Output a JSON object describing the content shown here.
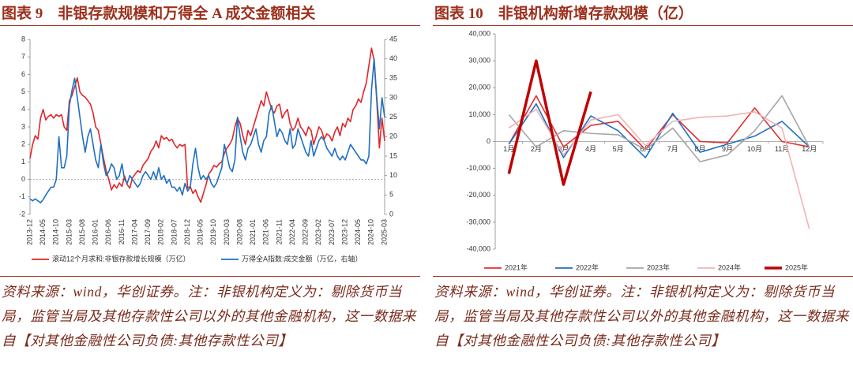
{
  "chart_data": [
    {
      "type": "line",
      "title": "图表 9　非银存款规模和万得全 A 成交金额相关",
      "categories": [
        "2013-12",
        null,
        null,
        null,
        null,
        "2014-05",
        null,
        null,
        null,
        null,
        "2014-10",
        null,
        null,
        null,
        null,
        "2015-03",
        null,
        null,
        null,
        null,
        "2015-08",
        null,
        null,
        null,
        null,
        "2016-01",
        null,
        null,
        null,
        null,
        "2016-06",
        null,
        null,
        null,
        null,
        "2016-11",
        null,
        null,
        null,
        null,
        "2017-04",
        null,
        null,
        null,
        null,
        "2017-09",
        null,
        null,
        null,
        null,
        "2018-02",
        null,
        null,
        null,
        null,
        "2018-07",
        null,
        null,
        null,
        null,
        "2018-12",
        null,
        null,
        null,
        null,
        "2019-05",
        null,
        null,
        null,
        null,
        "2019-10",
        null,
        null,
        null,
        null,
        "2020-03",
        null,
        null,
        null,
        null,
        "2020-08",
        null,
        null,
        null,
        null,
        "2021-01",
        null,
        null,
        null,
        null,
        "2021-06",
        null,
        null,
        null,
        null,
        "2021-11",
        null,
        null,
        null,
        null,
        "2022-04",
        null,
        null,
        null,
        null,
        "2022-09",
        null,
        null,
        null,
        null,
        "2023-02",
        null,
        null,
        null,
        null,
        "2023-07",
        null,
        null,
        null,
        null,
        "2023-12",
        null,
        null,
        null,
        null,
        "2024-05",
        null,
        null,
        null,
        null,
        "2024-10",
        null,
        null,
        null,
        null,
        "2025-03"
      ],
      "series": [
        {
          "name": "滚动12个月求和:非银存款增长规模（万亿）",
          "color": "#e0262a",
          "values": [
            1.2,
            2.0,
            2.5,
            2.3,
            3.5,
            4.0,
            3.4,
            3.6,
            3.7,
            3.5,
            3.7,
            3.6,
            3.7,
            3.0,
            2.8,
            4.5,
            4.8,
            5.3,
            5.8,
            5.0,
            4.8,
            4.7,
            4.5,
            4.3,
            3.8,
            3.0,
            2.8,
            2.0,
            1.2,
            0.5,
            0.0,
            -0.6,
            -0.3,
            -0.5,
            -0.2,
            -0.4,
            0.2,
            -0.3,
            -0.5,
            0.1,
            0.3,
            0.5,
            0.4,
            0.8,
            1.0,
            1.2,
            1.6,
            1.8,
            2.2,
            1.8,
            2.5,
            2.3,
            2.4,
            2.2,
            2.3,
            2.0,
            1.8,
            2.0,
            1.9,
            2.0,
            -0.5,
            -0.4,
            -0.8,
            -0.6,
            -1.0,
            -1.3,
            -0.8,
            -0.3,
            0.3,
            0.5,
            0.8,
            0.7,
            0.9,
            1.0,
            1.5,
            1.8,
            2.0,
            2.3,
            3.0,
            3.5,
            3.2,
            2.5,
            2.0,
            2.8,
            2.5,
            3.0,
            3.5,
            4.0,
            4.5,
            4.2,
            5.0,
            4.5,
            4.0,
            3.8,
            4.2,
            4.3,
            3.5,
            3.8,
            4.0,
            3.2,
            2.8,
            3.0,
            3.5,
            3.0,
            2.8,
            2.5,
            3.0,
            2.8,
            2.0,
            2.5,
            3.0,
            2.8,
            2.3,
            2.6,
            2.5,
            2.2,
            2.7,
            3.0,
            2.5,
            3.2,
            3.0,
            3.5,
            3.3,
            4.0,
            4.2,
            4.6,
            4.4,
            5.0,
            5.5,
            6.5,
            7.5,
            6.8,
            4.5,
            1.8,
            3.5,
            2.2
          ]
        },
        {
          "name": "万得全A指数:成交金额（万亿，右轴）",
          "color": "#1f6fc1",
          "axis": "y2",
          "values": [
            4,
            3.5,
            4,
            3.5,
            3,
            3.8,
            5,
            6,
            7,
            7,
            9,
            20,
            12,
            12,
            15,
            28,
            32,
            35,
            30,
            25,
            20,
            16,
            20,
            22,
            18,
            14,
            12,
            18,
            13,
            10,
            11,
            13,
            12,
            9,
            10,
            13,
            9,
            8,
            10,
            9,
            8,
            7,
            8,
            10,
            11,
            10,
            9,
            11,
            9,
            12,
            9,
            10,
            8,
            9,
            7,
            7,
            6,
            7,
            5,
            8,
            6,
            7,
            13,
            17,
            12,
            9,
            10,
            9,
            10,
            8,
            7,
            8,
            10,
            12,
            18,
            15,
            12,
            11,
            14,
            25,
            20,
            16,
            14,
            17,
            18,
            20,
            22,
            18,
            16,
            19,
            20,
            26,
            28,
            24,
            20,
            22,
            21,
            19,
            18,
            22,
            17,
            18,
            22,
            20,
            18,
            16,
            15,
            19,
            15,
            17,
            19,
            20,
            19,
            17,
            16,
            15,
            17,
            15,
            14,
            15,
            14,
            16,
            18,
            17,
            16,
            15,
            14,
            14,
            13,
            15,
            32,
            40,
            30,
            22,
            30,
            25
          ]
        }
      ],
      "ylim": [
        -2,
        8
      ],
      "yticks": [
        -2,
        -1,
        0,
        1,
        2,
        3,
        4,
        5,
        6,
        7,
        8
      ],
      "y2lim": [
        0,
        45
      ],
      "y2ticks": [
        0,
        5,
        10,
        15,
        20,
        25,
        30,
        35,
        40,
        45
      ],
      "source": "资料来源：wind，华创证券。注：非银机构定义为：剔除货币当局，监管当局及其他存款性公司以外的其他金融机构，这一数据来自【对其他金融性公司负债:其他存款性公司】"
    },
    {
      "type": "line",
      "title": "图表 10　非银机构新增存款规模（亿）",
      "categories": [
        "1月",
        "2月",
        "3月",
        "4月",
        "5月",
        "6月",
        "7月",
        "8月",
        "9月",
        "10月",
        "11月",
        "12月"
      ],
      "series": [
        {
          "name": "2021年",
          "color": "#e03030",
          "values": [
            -1000,
            17000,
            -2000,
            6000,
            7500,
            -3000,
            10000,
            0,
            -500,
            12500,
            0,
            -2000
          ]
        },
        {
          "name": "2022年",
          "color": "#1f6fc1",
          "values": [
            -1000,
            14000,
            -6000,
            9500,
            4000,
            -6000,
            10500,
            -4000,
            -1000,
            2000,
            7500,
            -2000
          ]
        },
        {
          "name": "2023年",
          "color": "#a6a6a6",
          "values": [
            10000,
            -2000,
            4000,
            3000,
            2500,
            -3000,
            5000,
            -7500,
            -5000,
            4000,
            17000,
            -2000
          ]
        },
        {
          "name": "2024年",
          "color": "#f2b3b3",
          "values": [
            5000,
            12000,
            -5000,
            8000,
            10000,
            -1500,
            7500,
            9000,
            9500,
            11000,
            5000,
            -32500
          ]
        },
        {
          "name": "2025年",
          "color": "#c00000",
          "line_width": 3.5,
          "values": [
            -12000,
            30000,
            -16000,
            18500,
            null,
            null,
            null,
            null,
            null,
            null,
            null,
            null
          ]
        }
      ],
      "ylim": [
        -40000,
        40000
      ],
      "yticks": [
        {
          "value": -40000,
          "label": "-40,000"
        },
        {
          "value": -30000,
          "label": "-30,000"
        },
        {
          "value": -20000,
          "label": "-20,000"
        },
        {
          "value": -10000,
          "label": "-10,000"
        },
        0,
        {
          "value": 10000,
          "label": "10,000"
        },
        {
          "value": 20000,
          "label": "20,000"
        },
        {
          "value": 30000,
          "label": "30,000"
        },
        {
          "value": 40000,
          "label": "40,000"
        }
      ],
      "source": "资料来源：wind，华创证券。注：非银机构定义为：剔除货币当局，监管当局及其他存款性公司以外的其他金融机构，这一数据来自【对其他金融性公司负债:其他存款性公司】"
    }
  ]
}
